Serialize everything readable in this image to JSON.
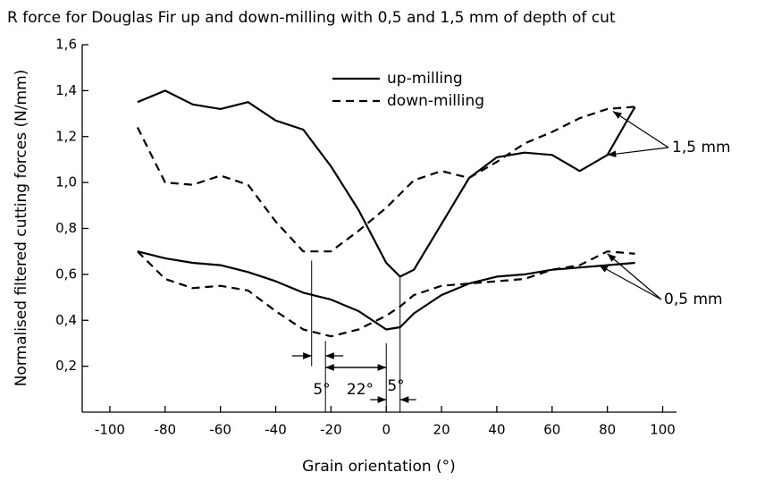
{
  "chart_data": {
    "type": "line",
    "title": "R force for Douglas Fir up and down-milling with 0,5 and 1,5 mm of depth of cut",
    "xlabel": "Grain orientation (°)",
    "ylabel": "Normalised filtered cutting forces (N/mm)",
    "x": [
      -90,
      -80,
      -70,
      -60,
      -50,
      -40,
      -30,
      -20,
      -10,
      0,
      5,
      10,
      20,
      30,
      40,
      50,
      60,
      70,
      80,
      90
    ],
    "legend": [
      {
        "name": "up-milling",
        "style": "solid"
      },
      {
        "name": "down-milling",
        "style": "dashed"
      }
    ],
    "series": [
      {
        "style": "solid",
        "color": "#000000",
        "values": [
          1.35,
          1.4,
          1.34,
          1.32,
          1.35,
          1.27,
          1.23,
          1.07,
          0.88,
          0.65,
          0.59,
          0.62,
          0.82,
          1.02,
          1.11,
          1.13,
          1.12,
          1.05,
          1.12,
          1.33
        ]
      },
      {
        "style": "dashed",
        "color": "#000000",
        "values": [
          1.24,
          1.0,
          0.99,
          1.03,
          0.99,
          0.83,
          0.7,
          0.7,
          0.79,
          0.89,
          0.95,
          1.01,
          1.05,
          1.02,
          1.09,
          1.17,
          1.22,
          1.28,
          1.32,
          1.33
        ]
      },
      {
        "style": "solid",
        "color": "#000000",
        "values": [
          0.7,
          0.67,
          0.65,
          0.64,
          0.61,
          0.57,
          0.52,
          0.49,
          0.44,
          0.36,
          0.37,
          0.43,
          0.51,
          0.56,
          0.59,
          0.6,
          0.62,
          0.63,
          0.64,
          0.65
        ]
      },
      {
        "style": "dashed",
        "color": "#000000",
        "values": [
          0.7,
          0.58,
          0.54,
          0.55,
          0.53,
          0.44,
          0.36,
          0.33,
          0.36,
          0.42,
          0.46,
          0.51,
          0.55,
          0.56,
          0.57,
          0.58,
          0.62,
          0.64,
          0.7,
          0.69
        ]
      }
    ],
    "annotations": [
      "1,5 mm",
      "0,5 mm",
      "5°",
      "22°",
      "5°"
    ],
    "reference_lines": [
      -27,
      -22,
      0,
      5
    ],
    "xlim": [
      -110,
      105
    ],
    "xticks": [
      -100,
      -80,
      -60,
      -40,
      -20,
      0,
      20,
      40,
      60,
      80,
      100
    ],
    "ylim": [
      0,
      1.6
    ],
    "yticks": [
      {
        "value": 0.2,
        "label": "0,2"
      },
      {
        "value": 0.4,
        "label": "0,4"
      },
      {
        "value": 0.6,
        "label": "0,6"
      },
      {
        "value": 0.8,
        "label": "0,8"
      },
      {
        "value": 1.0,
        "label": "1,0"
      },
      {
        "value": 1.2,
        "label": "1,2"
      },
      {
        "value": 1.4,
        "label": "1,4"
      },
      {
        "value": 1.6,
        "label": "1,6"
      }
    ]
  }
}
